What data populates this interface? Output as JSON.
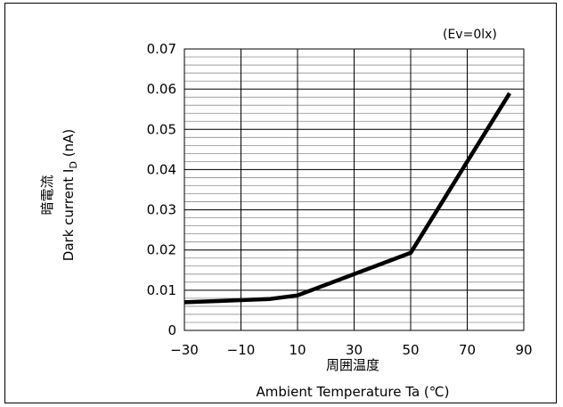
{
  "chart_data": {
    "type": "line",
    "x": [
      -30,
      0,
      10,
      50,
      70,
      85
    ],
    "series": [
      {
        "values": [
          0.007,
          0.0078,
          0.0087,
          0.0193,
          0.042,
          0.059
        ]
      }
    ],
    "xlim": [
      -30,
      90
    ],
    "ylim": [
      0,
      0.07
    ],
    "xticks": [
      "−30",
      "−10",
      "10",
      "30",
      "50",
      "70",
      "90"
    ],
    "yticks": [
      "0",
      "0.01",
      "0.02",
      "0.03",
      "0.04",
      "0.05",
      "0.06",
      "0.07"
    ],
    "xlabel_jp": "周囲温度",
    "xlabel": "Ambient Temperature Ta (℃)",
    "ylabel_jp": "暗電流",
    "ylabel_main": "Dark current I",
    "ylabel_sub": "D",
    "ylabel_unit": " (nA)",
    "annotation": "(Ev=0lx)",
    "grid": true,
    "line_color": "#000000"
  }
}
